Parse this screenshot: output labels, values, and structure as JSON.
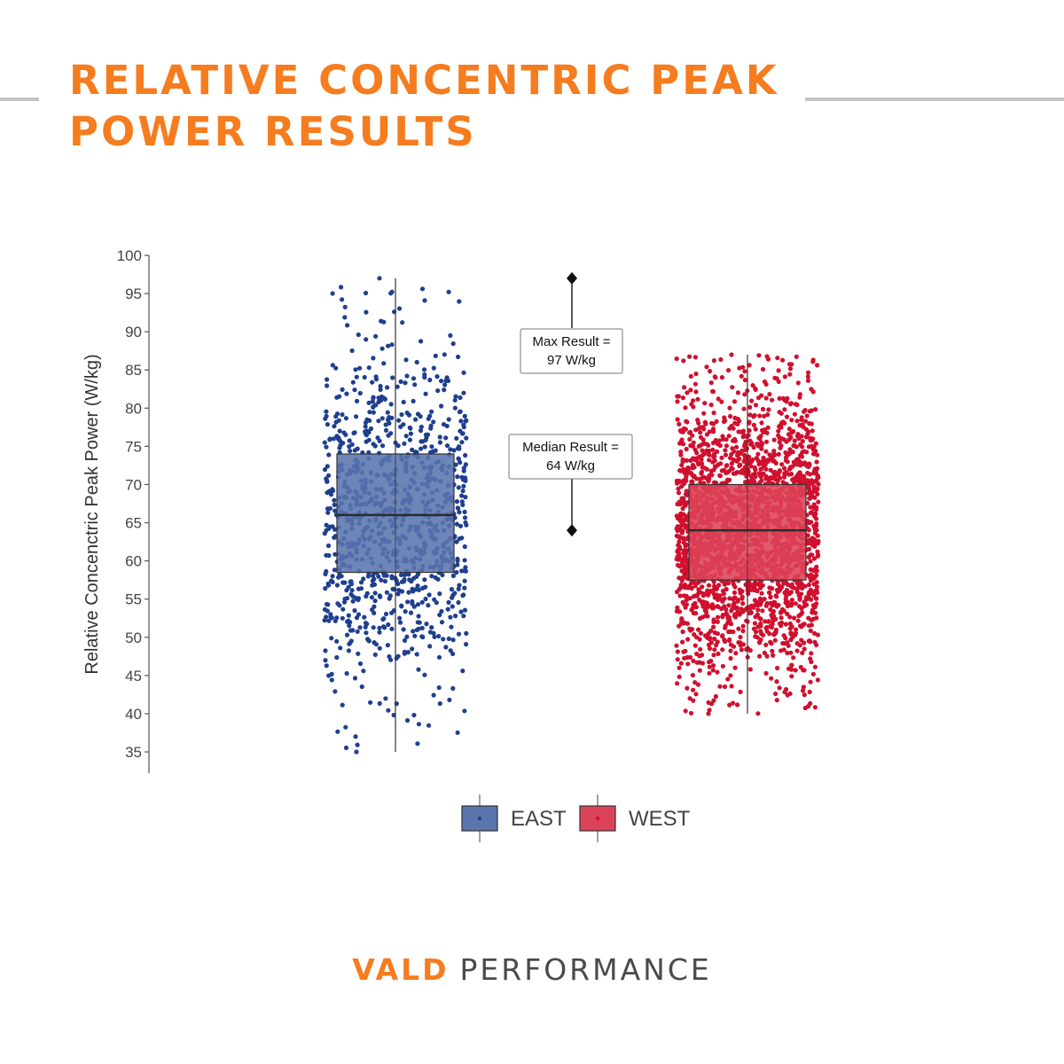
{
  "title": {
    "line1": "RELATIVE CONCENTRIC PEAK",
    "line2": "POWER RESULTS"
  },
  "colors": {
    "accent": "#f57c1f",
    "rule": "#c4c4c4",
    "east": "#1f3f8f",
    "east_box": "#5a74ae",
    "west": "#d0102e",
    "west_box": "#dc4359",
    "footer_dark": "#4a4a4a"
  },
  "chart_data": {
    "type": "box",
    "ylabel": "Relative Concenctric Peak Power (W/kg)",
    "ylim": [
      32,
      100
    ],
    "yticks": [
      35,
      40,
      45,
      50,
      55,
      60,
      65,
      70,
      75,
      80,
      85,
      90,
      95,
      100
    ],
    "grid": false,
    "legend_position": "bottom",
    "series": [
      {
        "name": "EAST",
        "min": 35,
        "q1": 58.5,
        "median": 66,
        "q3": 74,
        "max": 97,
        "point_count": 1000
      },
      {
        "name": "WEST",
        "min": 40,
        "q1": 57.5,
        "median": 64,
        "q3": 70,
        "max": 87,
        "point_count": 2400
      }
    ],
    "annotations": [
      {
        "label": "Max Result =",
        "value_label": "97 W/kg",
        "value": 97
      },
      {
        "label": "Median Result =",
        "value_label": "64 W/kg",
        "value": 64
      }
    ]
  },
  "footer": {
    "brand_primary": "VALD",
    "brand_secondary": "PERFORMANCE"
  }
}
